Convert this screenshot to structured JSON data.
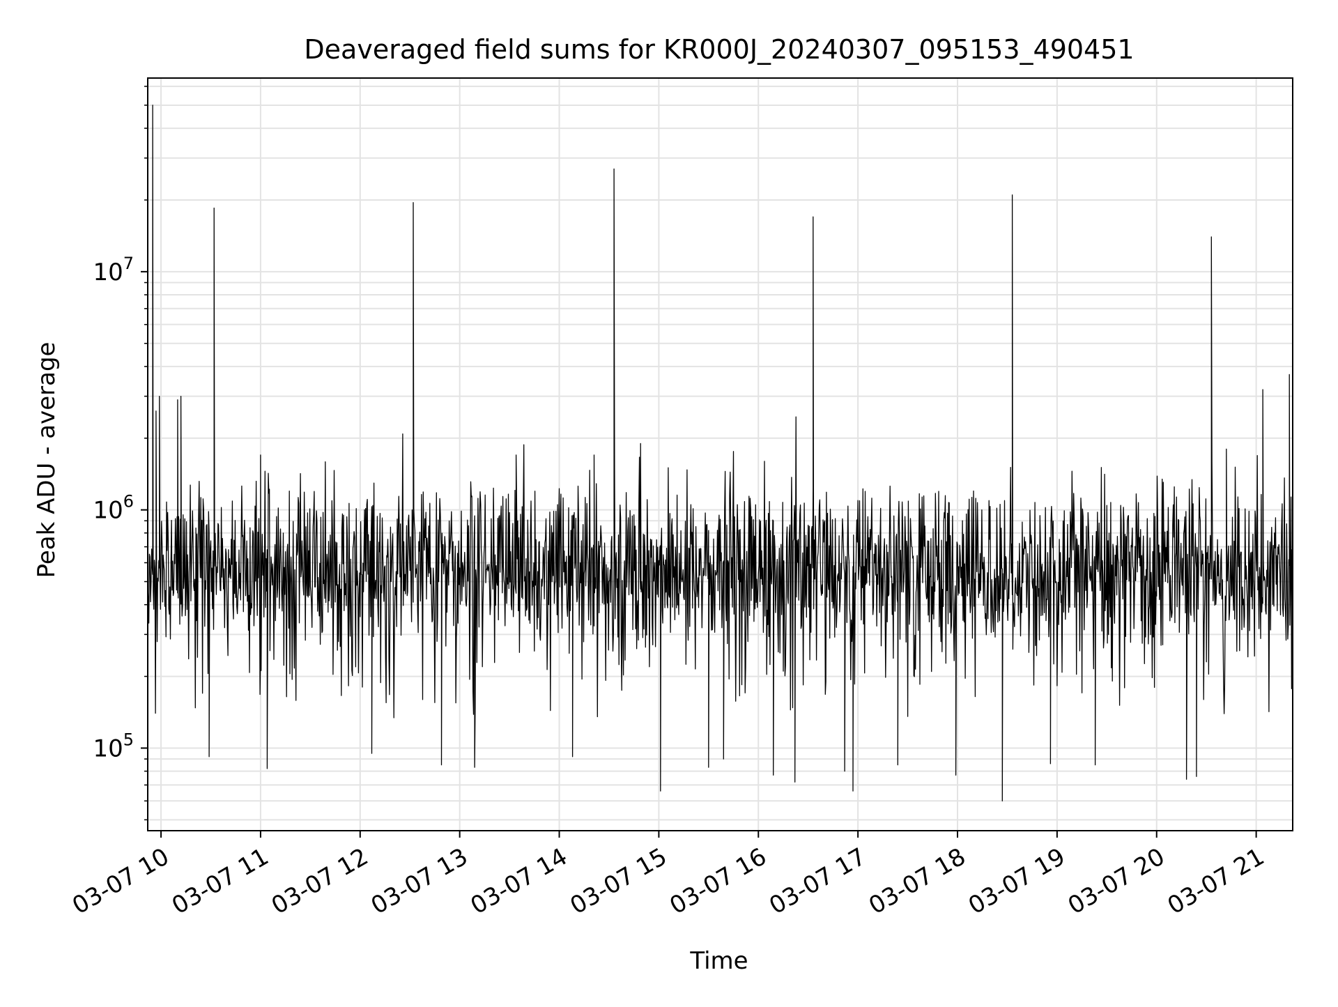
{
  "chart_data": {
    "type": "line",
    "title": "Deaveraged field sums for KR000J_20240307_095153_490451",
    "xlabel": "Time",
    "ylabel": "Peak ADU - average",
    "yscale": "log",
    "ylim": [
      45000,
      65000000
    ],
    "xlim": [
      "2024-03-07 09:52",
      "2024-03-07 21:22"
    ],
    "grid": true,
    "x_ticks": [
      {
        "time": "2024-03-07 10:00",
        "label": "03-07 10"
      },
      {
        "time": "2024-03-07 11:00",
        "label": "03-07 11"
      },
      {
        "time": "2024-03-07 12:00",
        "label": "03-07 12"
      },
      {
        "time": "2024-03-07 13:00",
        "label": "03-07 13"
      },
      {
        "time": "2024-03-07 14:00",
        "label": "03-07 14"
      },
      {
        "time": "2024-03-07 15:00",
        "label": "03-07 15"
      },
      {
        "time": "2024-03-07 16:00",
        "label": "03-07 16"
      },
      {
        "time": "2024-03-07 17:00",
        "label": "03-07 17"
      },
      {
        "time": "2024-03-07 18:00",
        "label": "03-07 18"
      },
      {
        "time": "2024-03-07 19:00",
        "label": "03-07 19"
      },
      {
        "time": "2024-03-07 20:00",
        "label": "03-07 20"
      },
      {
        "time": "2024-03-07 21:00",
        "label": "03-07 21"
      }
    ],
    "y_ticks": [
      {
        "value": 100000,
        "base": "10",
        "exp": "5"
      },
      {
        "value": 1000000,
        "base": "10",
        "exp": "6"
      },
      {
        "value": 10000000,
        "base": "10",
        "exp": "7"
      }
    ],
    "line_color": "#000000",
    "baseline": {
      "typical_median": 550000,
      "typical_low": 150000,
      "typical_high": 1000000
    },
    "notable_points": [
      {
        "time": "2024-03-07 09:55",
        "value": 50000000
      },
      {
        "time": "2024-03-07 09:57",
        "value": 2600000
      },
      {
        "time": "2024-03-07 09:59",
        "value": 3000000
      },
      {
        "time": "2024-03-07 10:10",
        "value": 2900000
      },
      {
        "time": "2024-03-07 10:12",
        "value": 3000000
      },
      {
        "time": "2024-03-07 10:29",
        "value": 92000
      },
      {
        "time": "2024-03-07 10:32",
        "value": 18500000
      },
      {
        "time": "2024-03-07 11:00",
        "value": 1700000
      },
      {
        "time": "2024-03-07 11:04",
        "value": 82000
      },
      {
        "time": "2024-03-07 12:07",
        "value": 95000
      },
      {
        "time": "2024-03-07 12:32",
        "value": 19500000
      },
      {
        "time": "2024-03-07 12:49",
        "value": 85000
      },
      {
        "time": "2024-03-07 13:09",
        "value": 83000
      },
      {
        "time": "2024-03-07 13:34",
        "value": 1700000
      },
      {
        "time": "2024-03-07 14:08",
        "value": 92000
      },
      {
        "time": "2024-03-07 14:21",
        "value": 1700000
      },
      {
        "time": "2024-03-07 14:33",
        "value": 27000000
      },
      {
        "time": "2024-03-07 14:49",
        "value": 1900000
      },
      {
        "time": "2024-03-07 15:01",
        "value": 66000
      },
      {
        "time": "2024-03-07 15:30",
        "value": 83000
      },
      {
        "time": "2024-03-07 15:39",
        "value": 90000
      },
      {
        "time": "2024-03-07 16:09",
        "value": 77000
      },
      {
        "time": "2024-03-07 16:22",
        "value": 72000
      },
      {
        "time": "2024-03-07 16:33",
        "value": 17000000
      },
      {
        "time": "2024-03-07 16:52",
        "value": 80000
      },
      {
        "time": "2024-03-07 16:57",
        "value": 66000
      },
      {
        "time": "2024-03-07 17:24",
        "value": 85000
      },
      {
        "time": "2024-03-07 17:59",
        "value": 77000
      },
      {
        "time": "2024-03-07 18:27",
        "value": 60000
      },
      {
        "time": "2024-03-07 18:33",
        "value": 21000000
      },
      {
        "time": "2024-03-07 18:56",
        "value": 86000
      },
      {
        "time": "2024-03-07 19:23",
        "value": 85000
      },
      {
        "time": "2024-03-07 20:18",
        "value": 74000
      },
      {
        "time": "2024-03-07 20:24",
        "value": 76000
      },
      {
        "time": "2024-03-07 20:33",
        "value": 14000000
      },
      {
        "time": "2024-03-07 20:42",
        "value": 1800000
      },
      {
        "time": "2024-03-07 21:04",
        "value": 3200000
      },
      {
        "time": "2024-03-07 21:20",
        "value": 3700000
      }
    ]
  }
}
